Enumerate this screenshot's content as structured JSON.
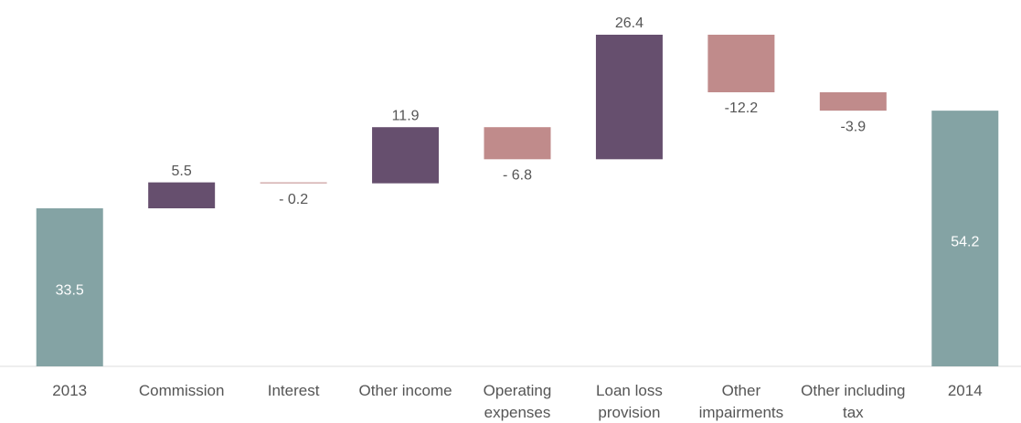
{
  "chart_data": {
    "type": "waterfall",
    "categories": [
      "2013",
      "Commission",
      "Interest",
      "Other income",
      "Operating expenses",
      "Loan loss provision",
      "Other impairments",
      "Other including tax",
      "2014"
    ],
    "values": [
      33.5,
      5.5,
      -0.2,
      11.9,
      -6.8,
      26.4,
      -12.2,
      -3.9,
      54.2
    ],
    "value_labels": [
      "33.5",
      "5.5",
      "- 0.2",
      "11.9",
      "- 6.8",
      "26.4",
      "-12.2",
      "-3.9",
      "54.2"
    ],
    "colors": [
      "#84a3a4",
      "#664f6e",
      "#c08b8b",
      "#664f6e",
      "#c08b8b",
      "#664f6e",
      "#c08b8b",
      "#c08b8b",
      "#84a3a4"
    ]
  }
}
